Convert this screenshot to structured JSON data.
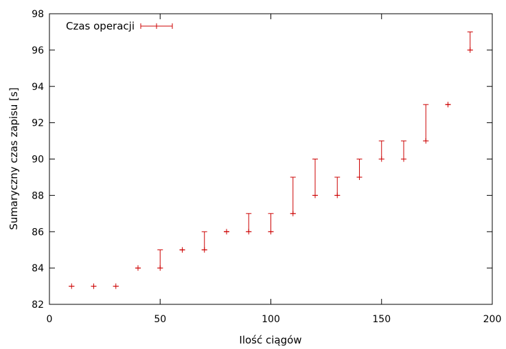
{
  "chart_data": {
    "type": "scatter",
    "title": "",
    "xlabel": "Ilość ciągów",
    "ylabel": "Sumaryczny czas zapisu [s]",
    "xlim": [
      0,
      200
    ],
    "ylim": [
      82,
      98
    ],
    "xticks": [
      0,
      50,
      100,
      150,
      200
    ],
    "yticks": [
      82,
      84,
      86,
      88,
      90,
      92,
      94,
      96,
      98
    ],
    "grid": false,
    "legend_position": "top-left",
    "series": [
      {
        "name": "Czas operacji",
        "style": "errorbars",
        "color": "#cc0000",
        "points": [
          {
            "x": 10,
            "y": 83,
            "ymin": 83,
            "ymax": 83
          },
          {
            "x": 20,
            "y": 83,
            "ymin": 83,
            "ymax": 83
          },
          {
            "x": 30,
            "y": 83,
            "ymin": 83,
            "ymax": 83
          },
          {
            "x": 40,
            "y": 84,
            "ymin": 84,
            "ymax": 84
          },
          {
            "x": 50,
            "y": 84,
            "ymin": 84,
            "ymax": 85
          },
          {
            "x": 60,
            "y": 85,
            "ymin": 85,
            "ymax": 85
          },
          {
            "x": 70,
            "y": 85,
            "ymin": 85,
            "ymax": 86
          },
          {
            "x": 80,
            "y": 86,
            "ymin": 86,
            "ymax": 86
          },
          {
            "x": 90,
            "y": 86,
            "ymin": 86,
            "ymax": 87
          },
          {
            "x": 100,
            "y": 86,
            "ymin": 86,
            "ymax": 87
          },
          {
            "x": 110,
            "y": 87,
            "ymin": 87,
            "ymax": 89
          },
          {
            "x": 120,
            "y": 88,
            "ymin": 88,
            "ymax": 90
          },
          {
            "x": 130,
            "y": 88,
            "ymin": 88,
            "ymax": 89
          },
          {
            "x": 140,
            "y": 89,
            "ymin": 89,
            "ymax": 90
          },
          {
            "x": 150,
            "y": 90,
            "ymin": 90,
            "ymax": 91
          },
          {
            "x": 160,
            "y": 90,
            "ymin": 90,
            "ymax": 91
          },
          {
            "x": 170,
            "y": 91,
            "ymin": 91,
            "ymax": 93
          },
          {
            "x": 180,
            "y": 93,
            "ymin": 93,
            "ymax": 93
          },
          {
            "x": 190,
            "y": 96,
            "ymin": 96,
            "ymax": 97
          }
        ]
      }
    ]
  }
}
